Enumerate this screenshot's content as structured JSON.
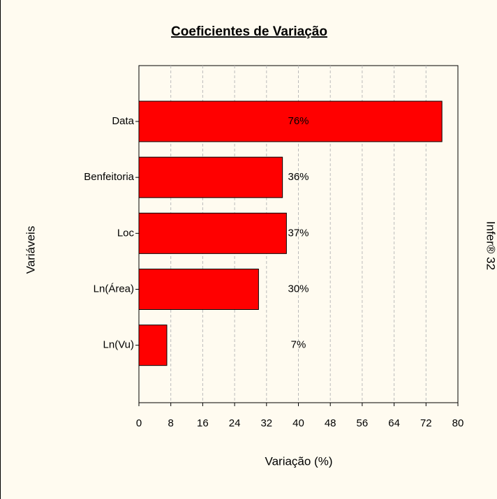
{
  "chart_data": {
    "type": "bar",
    "orientation": "horizontal",
    "title": "Coeficientes de Variação",
    "categories": [
      "Data",
      "Benfeitoria",
      "Loc",
      "Ln(Área)",
      "Ln(Vu)"
    ],
    "values": [
      76,
      36,
      37,
      30,
      7
    ],
    "value_labels": [
      "76%",
      "36%",
      "37%",
      "30%",
      "7%"
    ],
    "color": "#ff0000",
    "xlabel": "Variação (%)",
    "ylabel": "Variáveis",
    "annotation": "Infer® 32",
    "xlim": [
      0,
      80
    ],
    "xticks": [
      0,
      8,
      16,
      24,
      32,
      40,
      48,
      56,
      64,
      72,
      80
    ],
    "grid": true
  }
}
